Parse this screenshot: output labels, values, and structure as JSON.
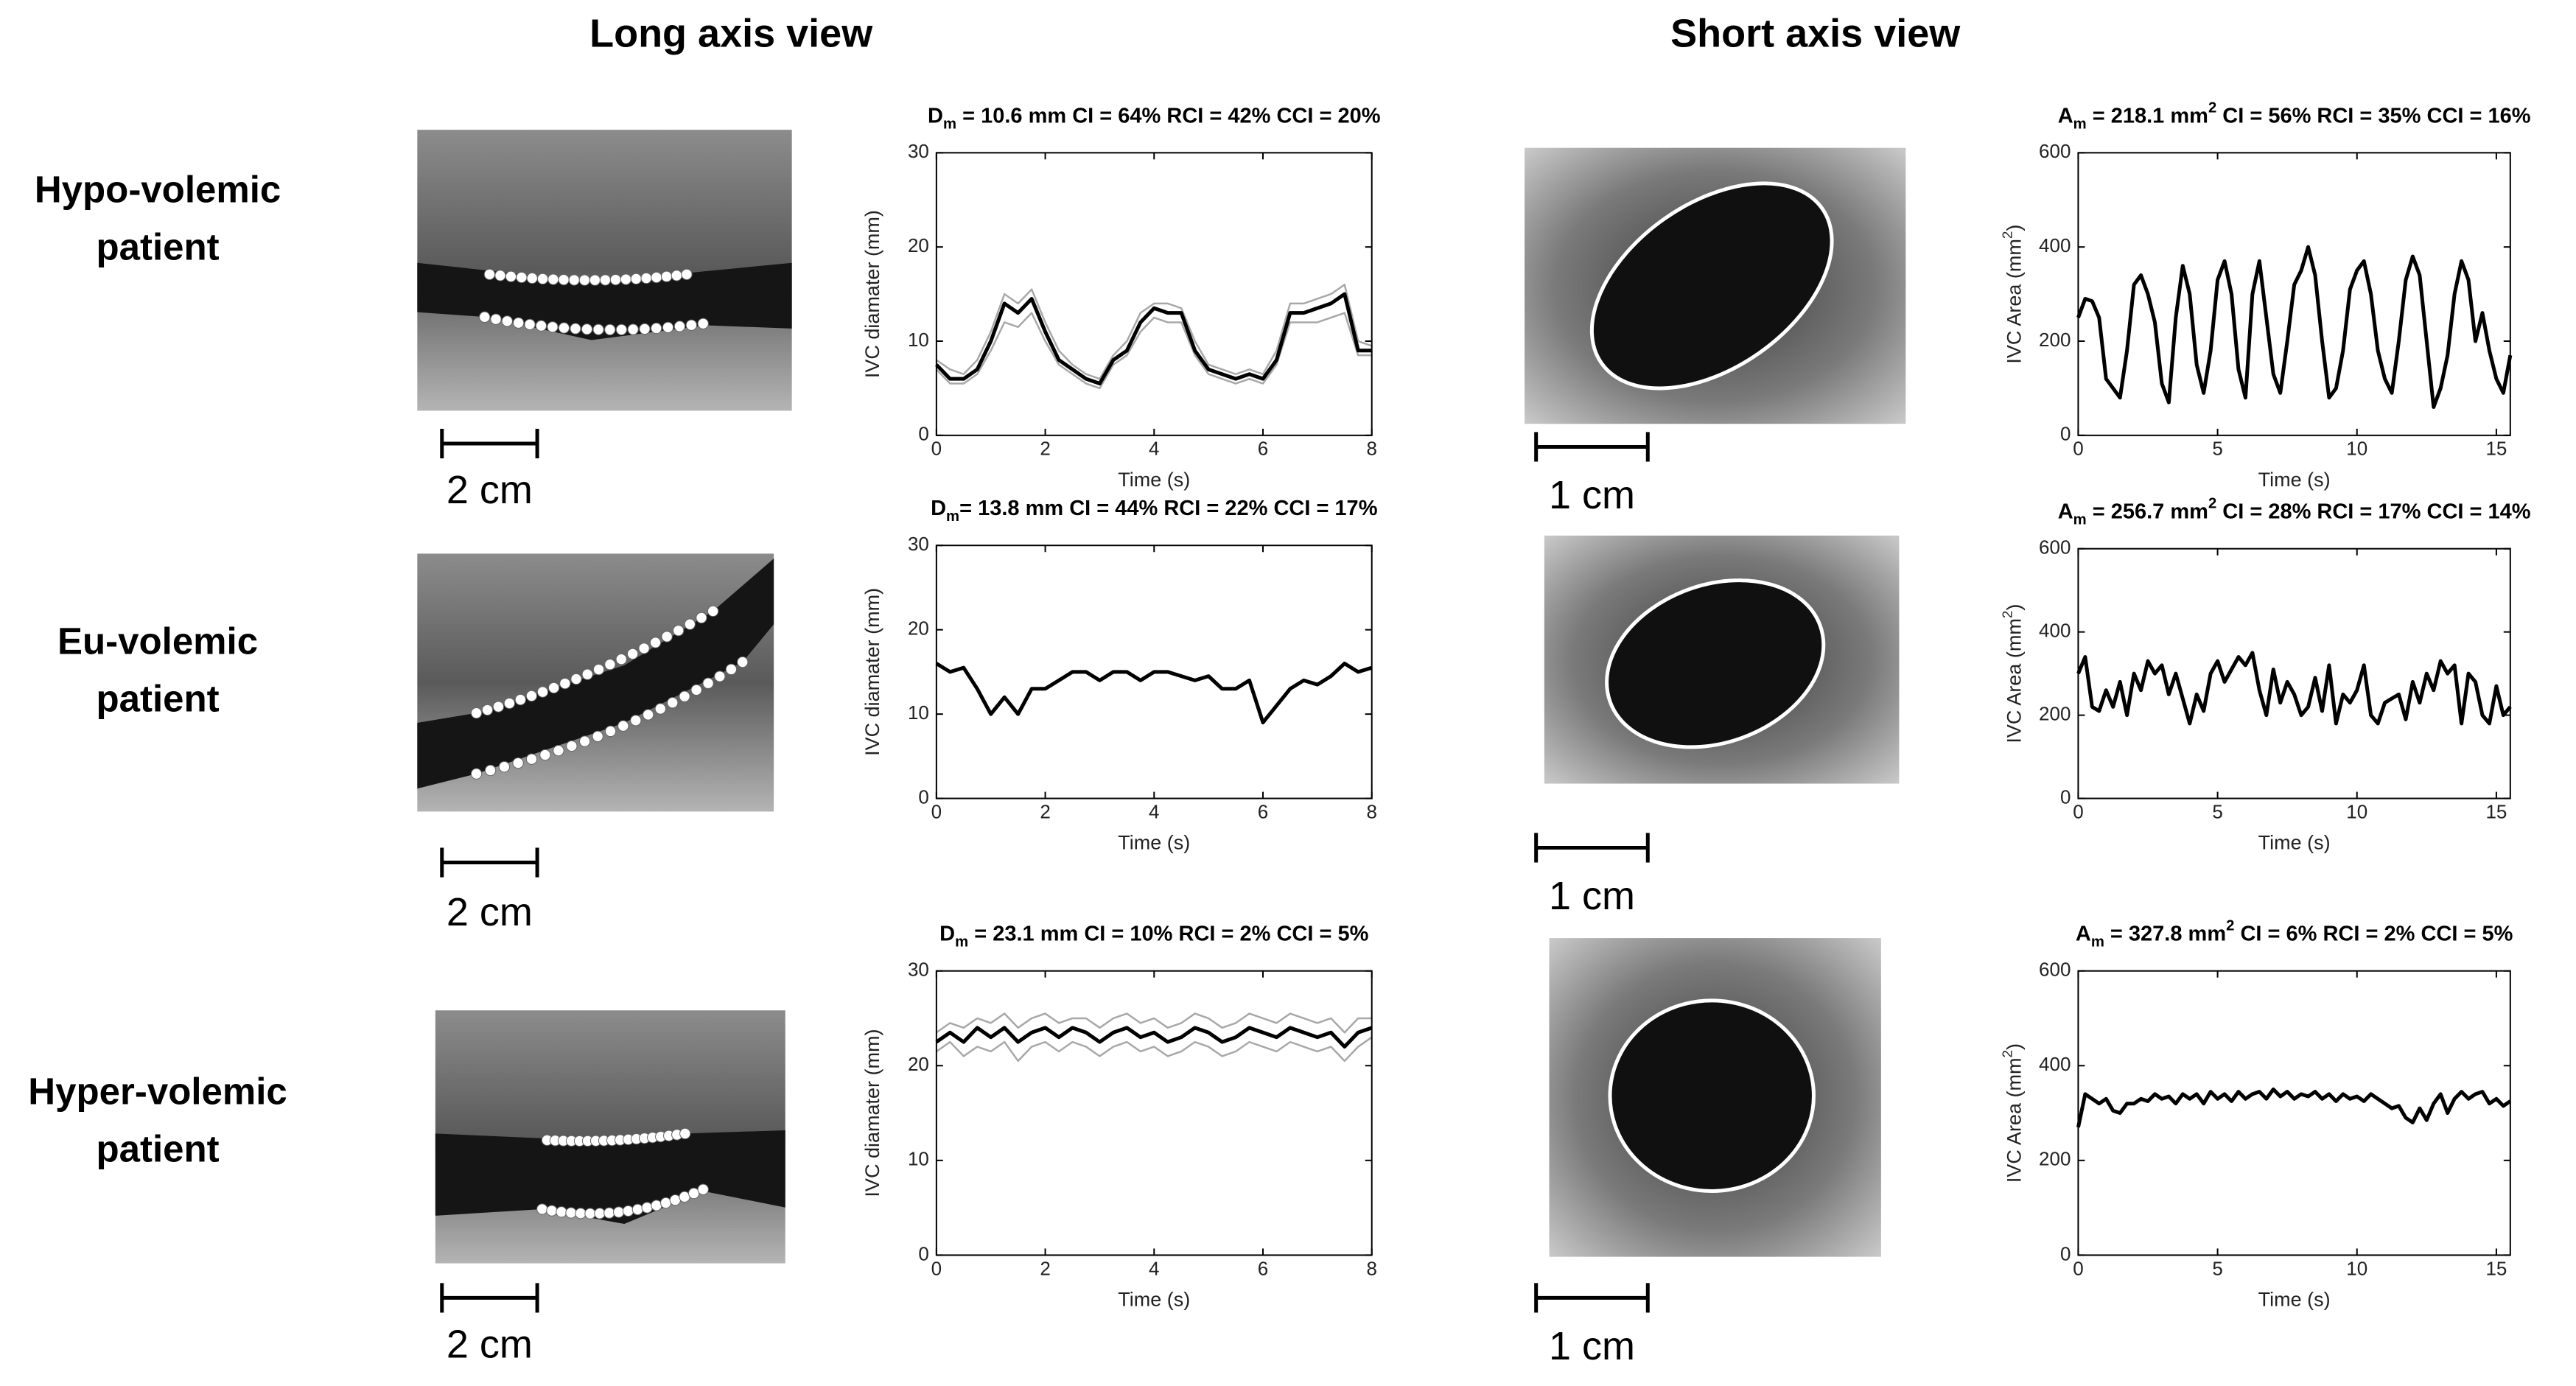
{
  "headers": [
    "Long axis view",
    "Short axis view"
  ],
  "rows": [
    {
      "label": [
        "Hypo-volemic",
        "patient"
      ],
      "long_scale": "2 cm",
      "short_scale": "1 cm"
    },
    {
      "label": [
        "Eu-volemic",
        "patient"
      ],
      "long_scale": "2 cm",
      "short_scale": "1 cm"
    },
    {
      "label": [
        "Hyper-volemic",
        "patient"
      ],
      "long_scale": "2 cm",
      "short_scale": "1 cm"
    }
  ],
  "chart_data": [
    {
      "type": "line",
      "title": [
        {
          "t": "D"
        },
        {
          "t": "m",
          "pos": "sub"
        },
        {
          "t": " = 10.6 mm CI = 64% RCI = 42% CCI = 20%"
        }
      ],
      "x_label": "Time (s)",
      "y_label": [
        {
          "t": "IVC diamater (mm)"
        }
      ],
      "xlim": [
        0,
        8
      ],
      "xticks": [
        0,
        2,
        4,
        6,
        8
      ],
      "ylim": [
        0,
        30
      ],
      "yticks": [
        0,
        10,
        20,
        30
      ],
      "x": [
        0,
        0.25,
        0.5,
        0.75,
        1,
        1.25,
        1.5,
        1.75,
        2,
        2.25,
        2.5,
        2.75,
        3,
        3.25,
        3.5,
        3.75,
        4,
        4.25,
        4.5,
        4.75,
        5,
        5.25,
        5.5,
        5.75,
        6,
        6.25,
        6.5,
        6.75,
        7,
        7.25,
        7.5,
        7.75,
        8
      ],
      "series": [
        {
          "color": "#a8a8a8",
          "values": [
            8,
            7,
            6.5,
            8,
            11,
            15,
            14,
            15.5,
            12,
            9,
            7.5,
            6.5,
            6,
            8.5,
            10,
            13,
            14,
            14,
            13.5,
            10,
            7.5,
            7,
            6.5,
            7,
            6.5,
            9,
            14,
            14,
            14.5,
            15,
            16,
            10,
            9.5
          ]
        },
        {
          "color": "#a8a8a8",
          "values": [
            7,
            5.5,
            5.5,
            6.5,
            9,
            12,
            11.5,
            13,
            10,
            7.5,
            6.5,
            5.5,
            5,
            7.5,
            8.5,
            11,
            12.5,
            12,
            12,
            8.5,
            6.5,
            6,
            5.5,
            6,
            5.5,
            7.5,
            12,
            12,
            12,
            12.5,
            13,
            8.5,
            8.5
          ]
        },
        {
          "color": "#000000",
          "values": [
            7.5,
            6,
            6,
            7,
            10,
            14,
            13,
            14.5,
            11,
            8,
            7,
            6,
            5.5,
            8,
            9,
            12,
            13.5,
            13,
            13,
            9,
            7,
            6.5,
            6,
            6.5,
            6,
            8,
            13,
            13,
            13.5,
            14,
            15,
            9,
            9
          ]
        }
      ]
    },
    {
      "type": "line",
      "title": [
        {
          "t": "D"
        },
        {
          "t": "m",
          "pos": "sub"
        },
        {
          "t": "= 13.8 mm CI = 44% RCI = 22% CCI = 17%"
        }
      ],
      "x_label": "Time (s)",
      "y_label": [
        {
          "t": "IVC diamater (mm)"
        }
      ],
      "xlim": [
        0,
        8
      ],
      "xticks": [
        0,
        2,
        4,
        6,
        8
      ],
      "ylim": [
        0,
        30
      ],
      "yticks": [
        0,
        10,
        20,
        30
      ],
      "x": [
        0,
        0.25,
        0.5,
        0.75,
        1,
        1.25,
        1.5,
        1.75,
        2,
        2.25,
        2.5,
        2.75,
        3,
        3.25,
        3.5,
        3.75,
        4,
        4.25,
        4.5,
        4.75,
        5,
        5.25,
        5.5,
        5.75,
        6,
        6.25,
        6.5,
        6.75,
        7,
        7.25,
        7.5,
        7.75,
        8
      ],
      "series": [
        {
          "color": "#000000",
          "values": [
            16,
            15,
            15.5,
            13,
            10,
            12,
            10,
            13,
            13,
            14,
            15,
            15,
            14,
            15,
            15,
            14,
            15,
            15,
            14.5,
            14,
            14.5,
            13,
            13,
            14,
            9,
            11,
            13,
            14,
            13.5,
            14.5,
            16,
            15,
            15.5
          ]
        }
      ]
    },
    {
      "type": "line",
      "title": [
        {
          "t": "D"
        },
        {
          "t": "m",
          "pos": "sub"
        },
        {
          "t": " = 23.1 mm CI = 10% RCI = 2% CCI = 5%"
        }
      ],
      "x_label": "Time (s)",
      "y_label": [
        {
          "t": "IVC diamater (mm)"
        }
      ],
      "xlim": [
        0,
        8
      ],
      "xticks": [
        0,
        2,
        4,
        6,
        8
      ],
      "ylim": [
        0,
        30
      ],
      "yticks": [
        0,
        10,
        20,
        30
      ],
      "x": [
        0,
        0.25,
        0.5,
        0.75,
        1,
        1.25,
        1.5,
        1.75,
        2,
        2.25,
        2.5,
        2.75,
        3,
        3.25,
        3.5,
        3.75,
        4,
        4.25,
        4.5,
        4.75,
        5,
        5.25,
        5.5,
        5.75,
        6,
        6.25,
        6.5,
        6.75,
        7,
        7.25,
        7.5,
        7.75,
        8
      ],
      "series": [
        {
          "color": "#a8a8a8",
          "values": [
            23.5,
            24.5,
            24,
            25,
            24.5,
            25.5,
            24,
            25,
            25.5,
            24.5,
            25,
            25,
            24,
            25,
            25.5,
            24.5,
            25,
            24,
            24.5,
            25.5,
            25,
            24,
            24.5,
            25.5,
            25,
            24.5,
            25.5,
            25,
            24.5,
            25,
            23.5,
            25,
            25
          ]
        },
        {
          "color": "#a8a8a8",
          "values": [
            21.5,
            22.5,
            21,
            22,
            21.5,
            22.5,
            20.5,
            22,
            22.5,
            21.5,
            22.5,
            22,
            21,
            22,
            22.5,
            21.5,
            22,
            21,
            21.5,
            22.5,
            22,
            21,
            21.5,
            22.5,
            22,
            21.5,
            22.5,
            22,
            21.5,
            22,
            20.5,
            22,
            23
          ]
        },
        {
          "color": "#000000",
          "values": [
            22.5,
            23.5,
            22.5,
            24,
            23,
            24,
            22.5,
            23.5,
            24,
            23,
            24,
            23.5,
            22.5,
            23.5,
            24,
            23,
            23.5,
            22.5,
            23,
            24,
            23.5,
            22.5,
            23,
            24,
            23.5,
            23,
            24,
            23.5,
            23,
            23.5,
            22,
            23.5,
            24
          ]
        }
      ]
    },
    {
      "type": "line",
      "title": [
        {
          "t": "A"
        },
        {
          "t": "m",
          "pos": "sub"
        },
        {
          "t": " = 218.1 mm"
        },
        {
          "t": "2",
          "pos": "sup"
        },
        {
          "t": " CI = 56% RCI = 35% CCI = 16%"
        }
      ],
      "x_label": "Time (s)",
      "y_label": [
        {
          "t": "IVC Area (mm"
        },
        {
          "t": "2",
          "pos": "sup"
        },
        {
          "t": ")"
        }
      ],
      "xlim": [
        0,
        15.5
      ],
      "xticks": [
        0,
        5,
        10,
        15
      ],
      "ylim": [
        0,
        600
      ],
      "yticks": [
        0,
        200,
        400,
        600
      ],
      "x": [
        0,
        0.25,
        0.5,
        0.75,
        1,
        1.25,
        1.5,
        1.75,
        2,
        2.25,
        2.5,
        2.75,
        3,
        3.25,
        3.5,
        3.75,
        4,
        4.25,
        4.5,
        4.75,
        5,
        5.25,
        5.5,
        5.75,
        6,
        6.25,
        6.5,
        6.75,
        7,
        7.25,
        7.5,
        7.75,
        8,
        8.25,
        8.5,
        8.75,
        9,
        9.25,
        9.5,
        9.75,
        10,
        10.25,
        10.5,
        10.75,
        11,
        11.25,
        11.5,
        11.75,
        12,
        12.25,
        12.5,
        12.75,
        13,
        13.25,
        13.5,
        13.75,
        14,
        14.25,
        14.5,
        14.75,
        15,
        15.25,
        15.5
      ],
      "series": [
        {
          "color": "#000000",
          "values": [
            250,
            290,
            285,
            250,
            120,
            100,
            80,
            180,
            320,
            340,
            300,
            240,
            110,
            70,
            250,
            360,
            300,
            150,
            90,
            180,
            330,
            370,
            300,
            140,
            80,
            300,
            370,
            250,
            130,
            90,
            200,
            320,
            350,
            400,
            340,
            200,
            80,
            100,
            180,
            310,
            350,
            370,
            300,
            180,
            120,
            90,
            200,
            330,
            380,
            340,
            200,
            60,
            100,
            170,
            300,
            370,
            330,
            200,
            260,
            180,
            120,
            90,
            170
          ]
        }
      ]
    },
    {
      "type": "line",
      "title": [
        {
          "t": "A"
        },
        {
          "t": "m",
          "pos": "sub"
        },
        {
          "t": " = 256.7 mm"
        },
        {
          "t": "2",
          "pos": "sup"
        },
        {
          "t": " CI = 28% RCI = 17% CCI = 14%"
        }
      ],
      "x_label": "Time (s)",
      "y_label": [
        {
          "t": "IVC Area (mm"
        },
        {
          "t": "2",
          "pos": "sup"
        },
        {
          "t": ")"
        }
      ],
      "xlim": [
        0,
        15.5
      ],
      "xticks": [
        0,
        5,
        10,
        15
      ],
      "ylim": [
        0,
        600
      ],
      "yticks": [
        0,
        200,
        400,
        600
      ],
      "x": [
        0,
        0.25,
        0.5,
        0.75,
        1,
        1.25,
        1.5,
        1.75,
        2,
        2.25,
        2.5,
        2.75,
        3,
        3.25,
        3.5,
        3.75,
        4,
        4.25,
        4.5,
        4.75,
        5,
        5.25,
        5.5,
        5.75,
        6,
        6.25,
        6.5,
        6.75,
        7,
        7.25,
        7.5,
        7.75,
        8,
        8.25,
        8.5,
        8.75,
        9,
        9.25,
        9.5,
        9.75,
        10,
        10.25,
        10.5,
        10.75,
        11,
        11.25,
        11.5,
        11.75,
        12,
        12.25,
        12.5,
        12.75,
        13,
        13.25,
        13.5,
        13.75,
        14,
        14.25,
        14.5,
        14.75,
        15,
        15.25,
        15.5
      ],
      "series": [
        {
          "color": "#000000",
          "values": [
            300,
            340,
            220,
            210,
            260,
            220,
            280,
            200,
            300,
            260,
            330,
            300,
            320,
            250,
            300,
            240,
            180,
            250,
            210,
            300,
            330,
            280,
            310,
            340,
            320,
            350,
            260,
            200,
            310,
            230,
            280,
            250,
            200,
            220,
            290,
            210,
            320,
            180,
            250,
            230,
            260,
            320,
            200,
            180,
            230,
            240,
            250,
            190,
            280,
            230,
            300,
            260,
            330,
            300,
            320,
            180,
            300,
            280,
            200,
            180,
            270,
            200,
            220
          ]
        }
      ]
    },
    {
      "type": "line",
      "title": [
        {
          "t": "A"
        },
        {
          "t": "m",
          "pos": "sub"
        },
        {
          "t": " = 327.8 mm"
        },
        {
          "t": "2",
          "pos": "sup"
        },
        {
          "t": " CI = 6% RCI = 2% CCI = 5%"
        }
      ],
      "x_label": "Time (s)",
      "y_label": [
        {
          "t": "IVC Area (mm"
        },
        {
          "t": "2",
          "pos": "sup"
        },
        {
          "t": ")"
        }
      ],
      "xlim": [
        0,
        15.5
      ],
      "xticks": [
        0,
        5,
        10,
        15
      ],
      "ylim": [
        0,
        600
      ],
      "yticks": [
        0,
        200,
        400,
        600
      ],
      "x": [
        0,
        0.25,
        0.5,
        0.75,
        1,
        1.25,
        1.5,
        1.75,
        2,
        2.25,
        2.5,
        2.75,
        3,
        3.25,
        3.5,
        3.75,
        4,
        4.25,
        4.5,
        4.75,
        5,
        5.25,
        5.5,
        5.75,
        6,
        6.25,
        6.5,
        6.75,
        7,
        7.25,
        7.5,
        7.75,
        8,
        8.25,
        8.5,
        8.75,
        9,
        9.25,
        9.5,
        9.75,
        10,
        10.25,
        10.5,
        10.75,
        11,
        11.25,
        11.5,
        11.75,
        12,
        12.25,
        12.5,
        12.75,
        13,
        13.25,
        13.5,
        13.75,
        14,
        14.25,
        14.5,
        14.75,
        15,
        15.25,
        15.5
      ],
      "series": [
        {
          "color": "#000000",
          "values": [
            270,
            340,
            330,
            320,
            330,
            305,
            300,
            320,
            320,
            330,
            325,
            340,
            330,
            335,
            320,
            340,
            330,
            340,
            320,
            345,
            330,
            340,
            325,
            345,
            330,
            340,
            345,
            330,
            350,
            335,
            345,
            330,
            340,
            335,
            345,
            330,
            340,
            325,
            340,
            330,
            335,
            325,
            340,
            330,
            320,
            310,
            315,
            290,
            280,
            310,
            285,
            320,
            340,
            300,
            330,
            345,
            330,
            340,
            345,
            320,
            330,
            315,
            325
          ]
        }
      ]
    }
  ]
}
